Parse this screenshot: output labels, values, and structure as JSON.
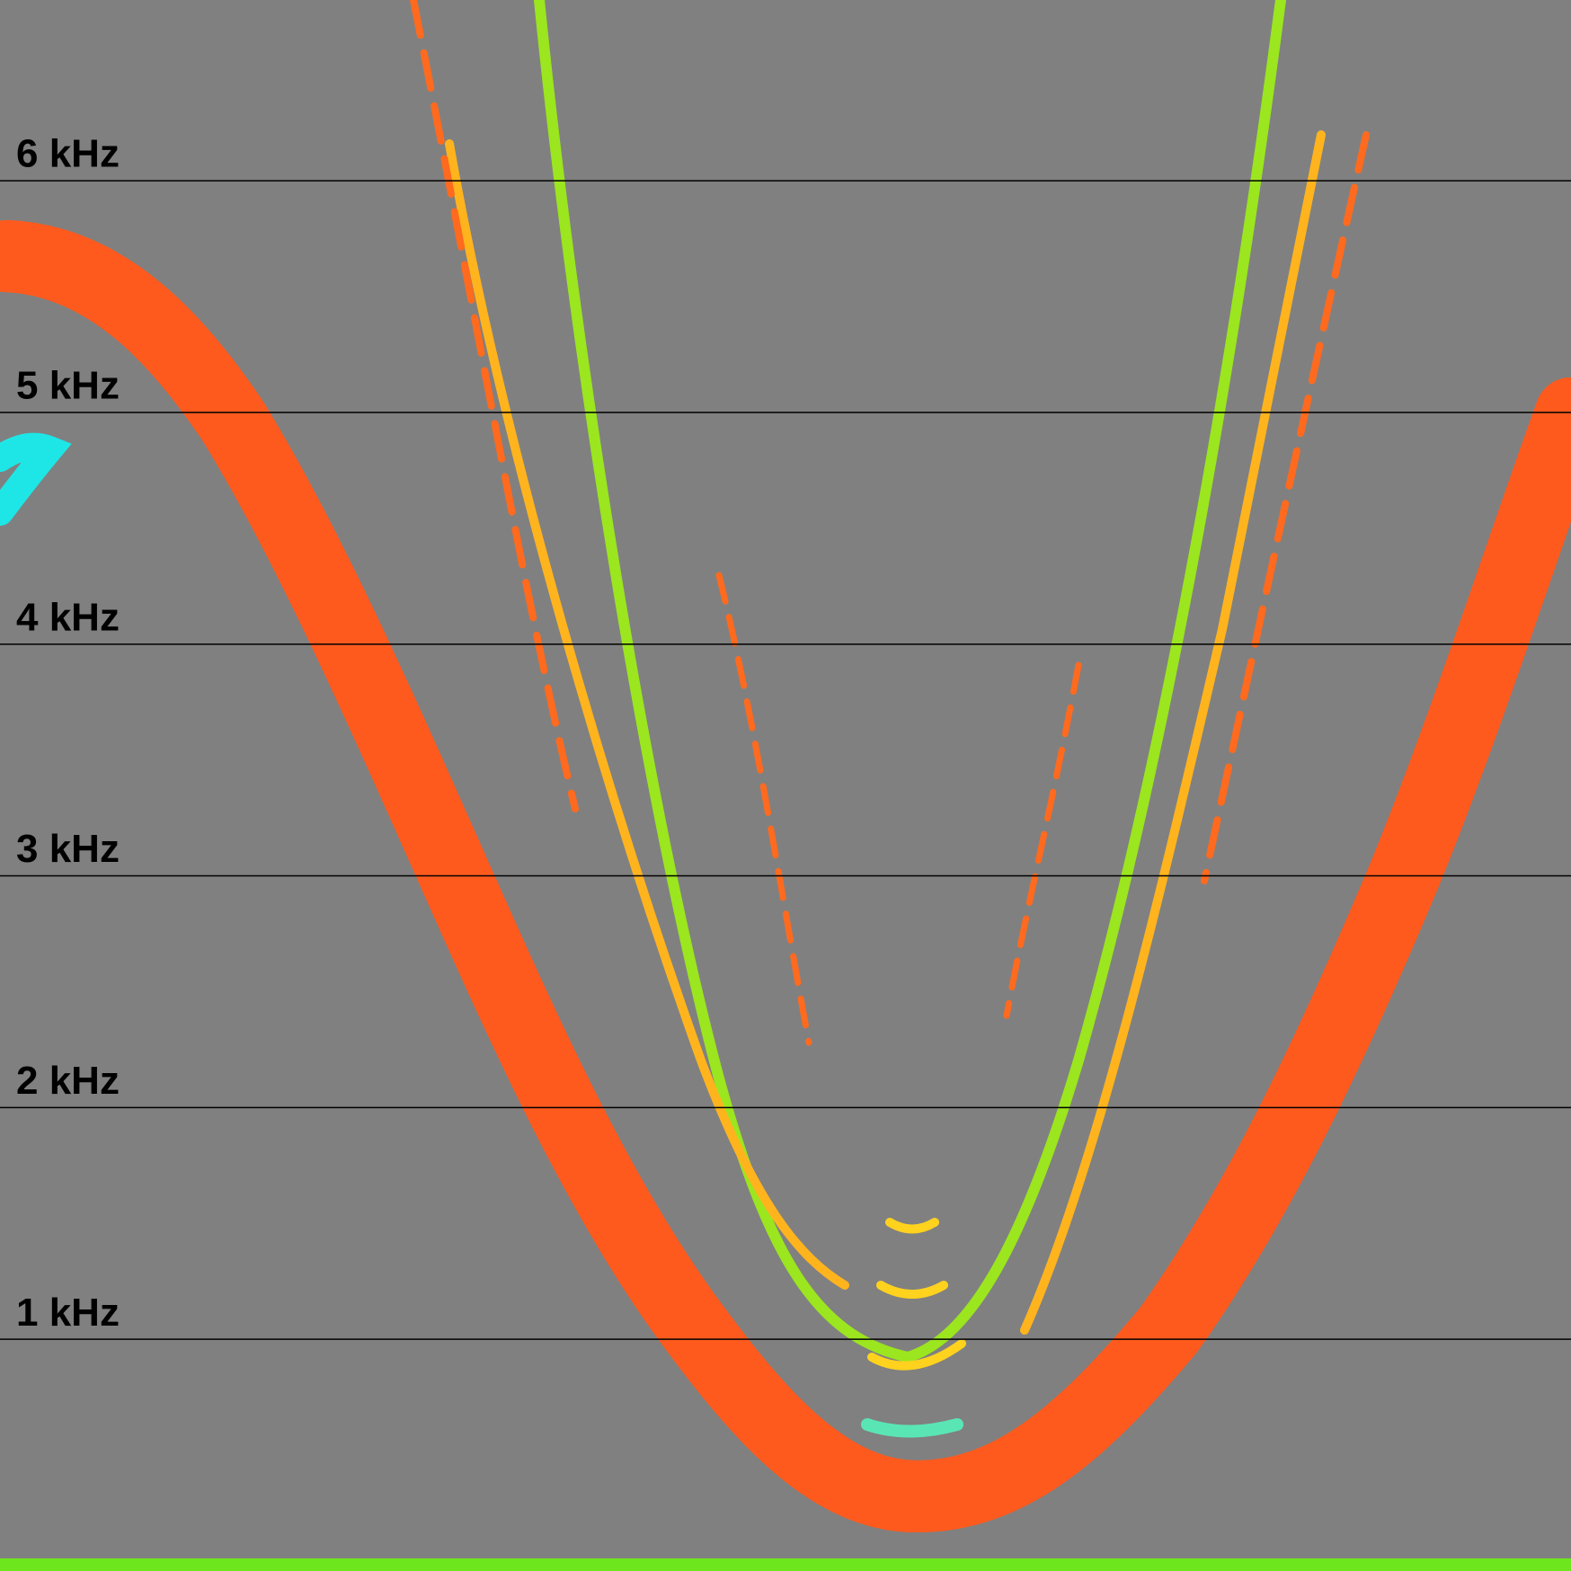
{
  "chart_data": {
    "type": "spectrogram",
    "ylim": [
      0,
      6.78
    ],
    "yticks": [
      {
        "value": 1,
        "label": "1 kHz"
      },
      {
        "value": 2,
        "label": "2 kHz"
      },
      {
        "value": 3,
        "label": "3 kHz"
      },
      {
        "value": 4,
        "label": "4 kHz"
      },
      {
        "value": 5,
        "label": "5 kHz"
      },
      {
        "value": 6,
        "label": "6 kHz"
      }
    ],
    "grid": true
  }
}
